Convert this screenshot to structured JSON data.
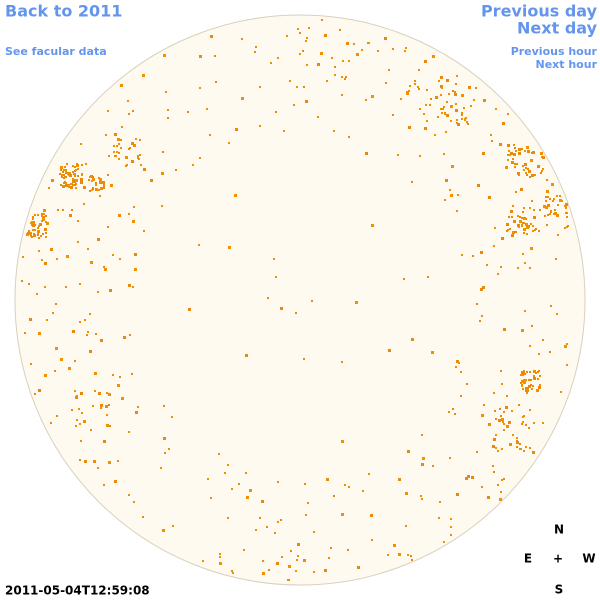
{
  "links": {
    "back": "Back to 2011",
    "facular": "See facular data",
    "previous_day": "Previous day",
    "next_day": "Next day",
    "previous_hour": "Previous hour",
    "next_hour": "Next hour"
  },
  "timestamp": "2011-05-04T12:59:08",
  "compass": {
    "north": "N",
    "east": "E",
    "center": "+",
    "west": "W",
    "south": "S"
  }
}
